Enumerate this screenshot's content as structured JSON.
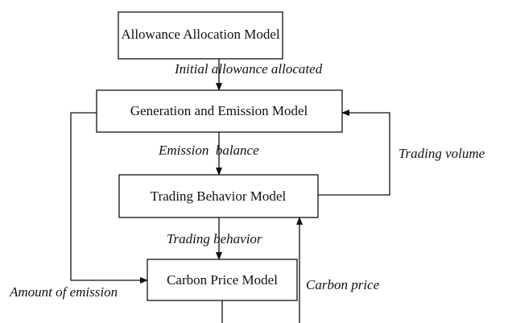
{
  "nodes": [
    {
      "label": "Allowance Allocation Model"
    },
    {
      "label": "Generation and Emission Model"
    },
    {
      "label": "Trading Behavior Model"
    },
    {
      "label": "Carbon Price Model"
    }
  ],
  "edges": [
    {
      "label": "Initial allowance allocated"
    },
    {
      "label": "Emission  balance"
    },
    {
      "label": "Trading volume"
    },
    {
      "label": "Trading behavior"
    },
    {
      "label": "Amount of emission"
    },
    {
      "label": "Carbon price"
    }
  ]
}
